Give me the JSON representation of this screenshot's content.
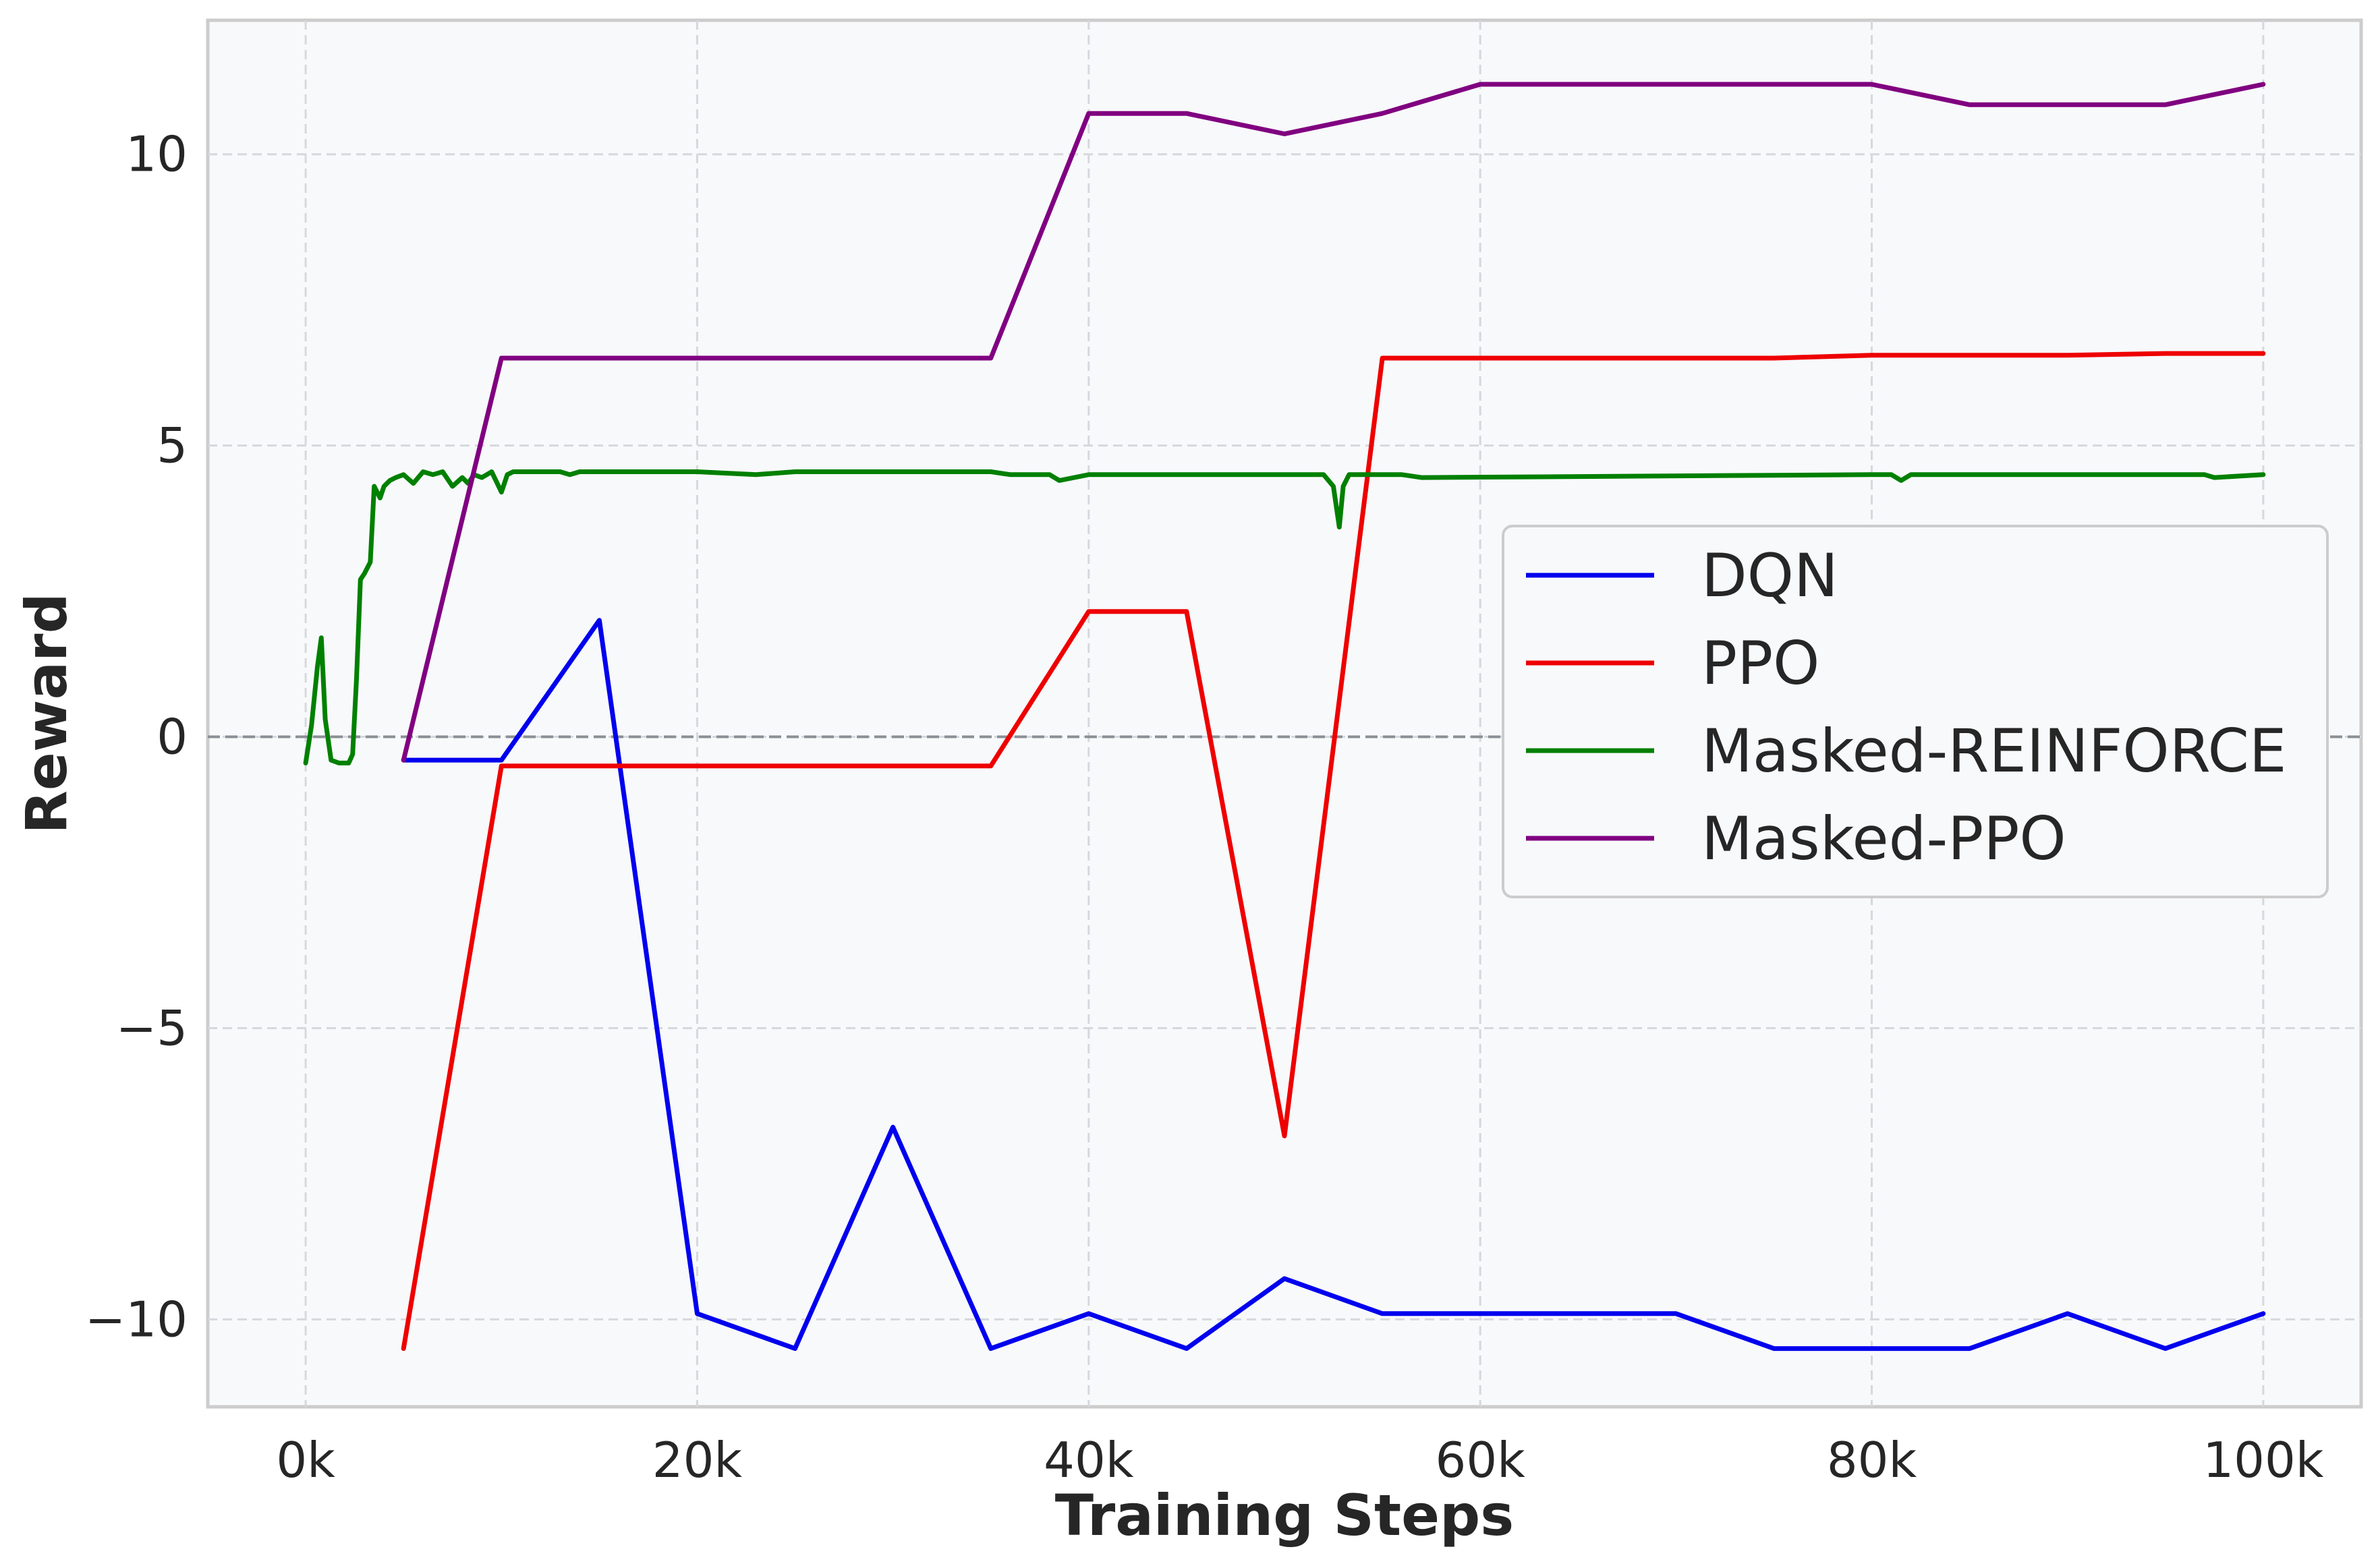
{
  "chart_data": {
    "type": "line",
    "title": "",
    "xlabel": "Training Steps",
    "ylabel": "Reward",
    "xlim": [
      -5000,
      105000
    ],
    "ylim": [
      -11.5,
      12.3
    ],
    "x_ticks": [
      0,
      20000,
      40000,
      60000,
      80000,
      100000
    ],
    "x_tick_labels": [
      "0k",
      "20k",
      "40k",
      "60k",
      "80k",
      "100k"
    ],
    "y_ticks": [
      -10,
      -5,
      0,
      5,
      10
    ],
    "y_tick_labels": [
      "−10",
      "−5",
      "0",
      "5",
      "10"
    ],
    "grid": true,
    "zero_line": true,
    "legend_position": "center-right",
    "series": [
      {
        "name": "DQN",
        "color": "#0000ee",
        "x": [
          5000,
          10000,
          15000,
          20000,
          25000,
          30000,
          35000,
          40000,
          45000,
          50000,
          55000,
          60000,
          65000,
          70000,
          75000,
          80000,
          85000,
          90000,
          95000,
          100000
        ],
        "y": [
          -0.4,
          -0.4,
          2.0,
          -9.9,
          -10.5,
          -6.7,
          -10.5,
          -9.9,
          -10.5,
          -9.3,
          -9.9,
          -9.9,
          -9.9,
          -9.9,
          -10.5,
          -10.5,
          -10.5,
          -9.9,
          -10.5,
          -9.9
        ]
      },
      {
        "name": "PPO",
        "color": "#ee0000",
        "x": [
          5000,
          10000,
          15000,
          20000,
          25000,
          30000,
          35000,
          40000,
          45000,
          50000,
          55000,
          60000,
          65000,
          70000,
          75000,
          80000,
          85000,
          90000,
          95000,
          100000
        ],
        "y": [
          -10.5,
          -0.5,
          -0.5,
          -0.5,
          -0.5,
          -0.5,
          -0.5,
          2.15,
          2.15,
          -6.85,
          6.5,
          6.5,
          6.5,
          6.5,
          6.5,
          6.55,
          6.55,
          6.55,
          6.58,
          6.58
        ]
      },
      {
        "name": "Masked-REINFORCE",
        "color": "#008000",
        "x": [
          0,
          300,
          600,
          800,
          1000,
          1300,
          1700,
          2000,
          2200,
          2400,
          2600,
          2800,
          3000,
          3300,
          3500,
          3800,
          4000,
          4300,
          4600,
          5000,
          5500,
          6000,
          6500,
          7000,
          7500,
          8000,
          8300,
          8600,
          9000,
          9500,
          10000,
          10300,
          10600,
          11000,
          12000,
          13000,
          13500,
          14000,
          20000,
          23000,
          25000,
          30000,
          35000,
          36000,
          38000,
          38500,
          40000,
          50000,
          52000,
          52500,
          52800,
          53000,
          53300,
          54000,
          56000,
          57000,
          80000,
          81000,
          81500,
          82000,
          90000,
          97000,
          97500,
          100000
        ],
        "y": [
          -0.45,
          0.2,
          1.2,
          1.7,
          0.3,
          -0.4,
          -0.45,
          -0.45,
          -0.45,
          -0.3,
          1.0,
          2.7,
          2.8,
          3.0,
          4.3,
          4.1,
          4.3,
          4.4,
          4.45,
          4.5,
          4.35,
          4.55,
          4.5,
          4.55,
          4.3,
          4.45,
          4.35,
          4.5,
          4.45,
          4.55,
          4.2,
          4.5,
          4.55,
          4.55,
          4.55,
          4.55,
          4.5,
          4.55,
          4.55,
          4.5,
          4.55,
          4.55,
          4.55,
          4.5,
          4.5,
          4.4,
          4.5,
          4.5,
          4.5,
          4.3,
          3.6,
          4.3,
          4.5,
          4.5,
          4.5,
          4.45,
          4.5,
          4.5,
          4.4,
          4.5,
          4.5,
          4.5,
          4.45,
          4.5
        ]
      },
      {
        "name": "Masked-PPO",
        "color": "#800080",
        "x": [
          5000,
          10000,
          15000,
          20000,
          25000,
          30000,
          35000,
          40000,
          45000,
          50000,
          55000,
          60000,
          65000,
          70000,
          75000,
          80000,
          85000,
          90000,
          95000,
          100000
        ],
        "y": [
          -0.4,
          6.5,
          6.5,
          6.5,
          6.5,
          6.5,
          6.5,
          10.7,
          10.7,
          10.35,
          10.7,
          11.2,
          11.2,
          11.2,
          11.2,
          11.2,
          10.85,
          10.85,
          10.85,
          11.2
        ]
      }
    ]
  }
}
